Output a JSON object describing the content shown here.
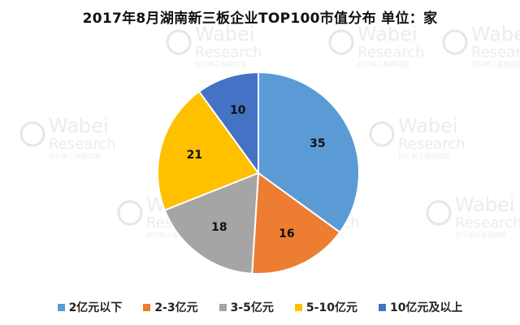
{
  "watermark": {
    "brand": "Wabei",
    "sub": "Research",
    "cn": "挖贝新三板研究院"
  },
  "chart_data": {
    "type": "pie",
    "title": "2017年8月湖南新三板企业TOP100市值分布  单位：家",
    "slices": [
      {
        "label": "2亿元以下",
        "value": 35,
        "color": "#5B9BD5"
      },
      {
        "label": "2-3亿元",
        "value": 16,
        "color": "#ED7D31"
      },
      {
        "label": "3-5亿元",
        "value": 18,
        "color": "#A5A5A5"
      },
      {
        "label": "5-10亿元",
        "value": 21,
        "color": "#FFC000"
      },
      {
        "label": "10亿元及以上",
        "value": 10,
        "color": "#4472C4"
      }
    ],
    "legend_position": "bottom",
    "start_angle": "12 o'clock",
    "direction": "clockwise"
  }
}
